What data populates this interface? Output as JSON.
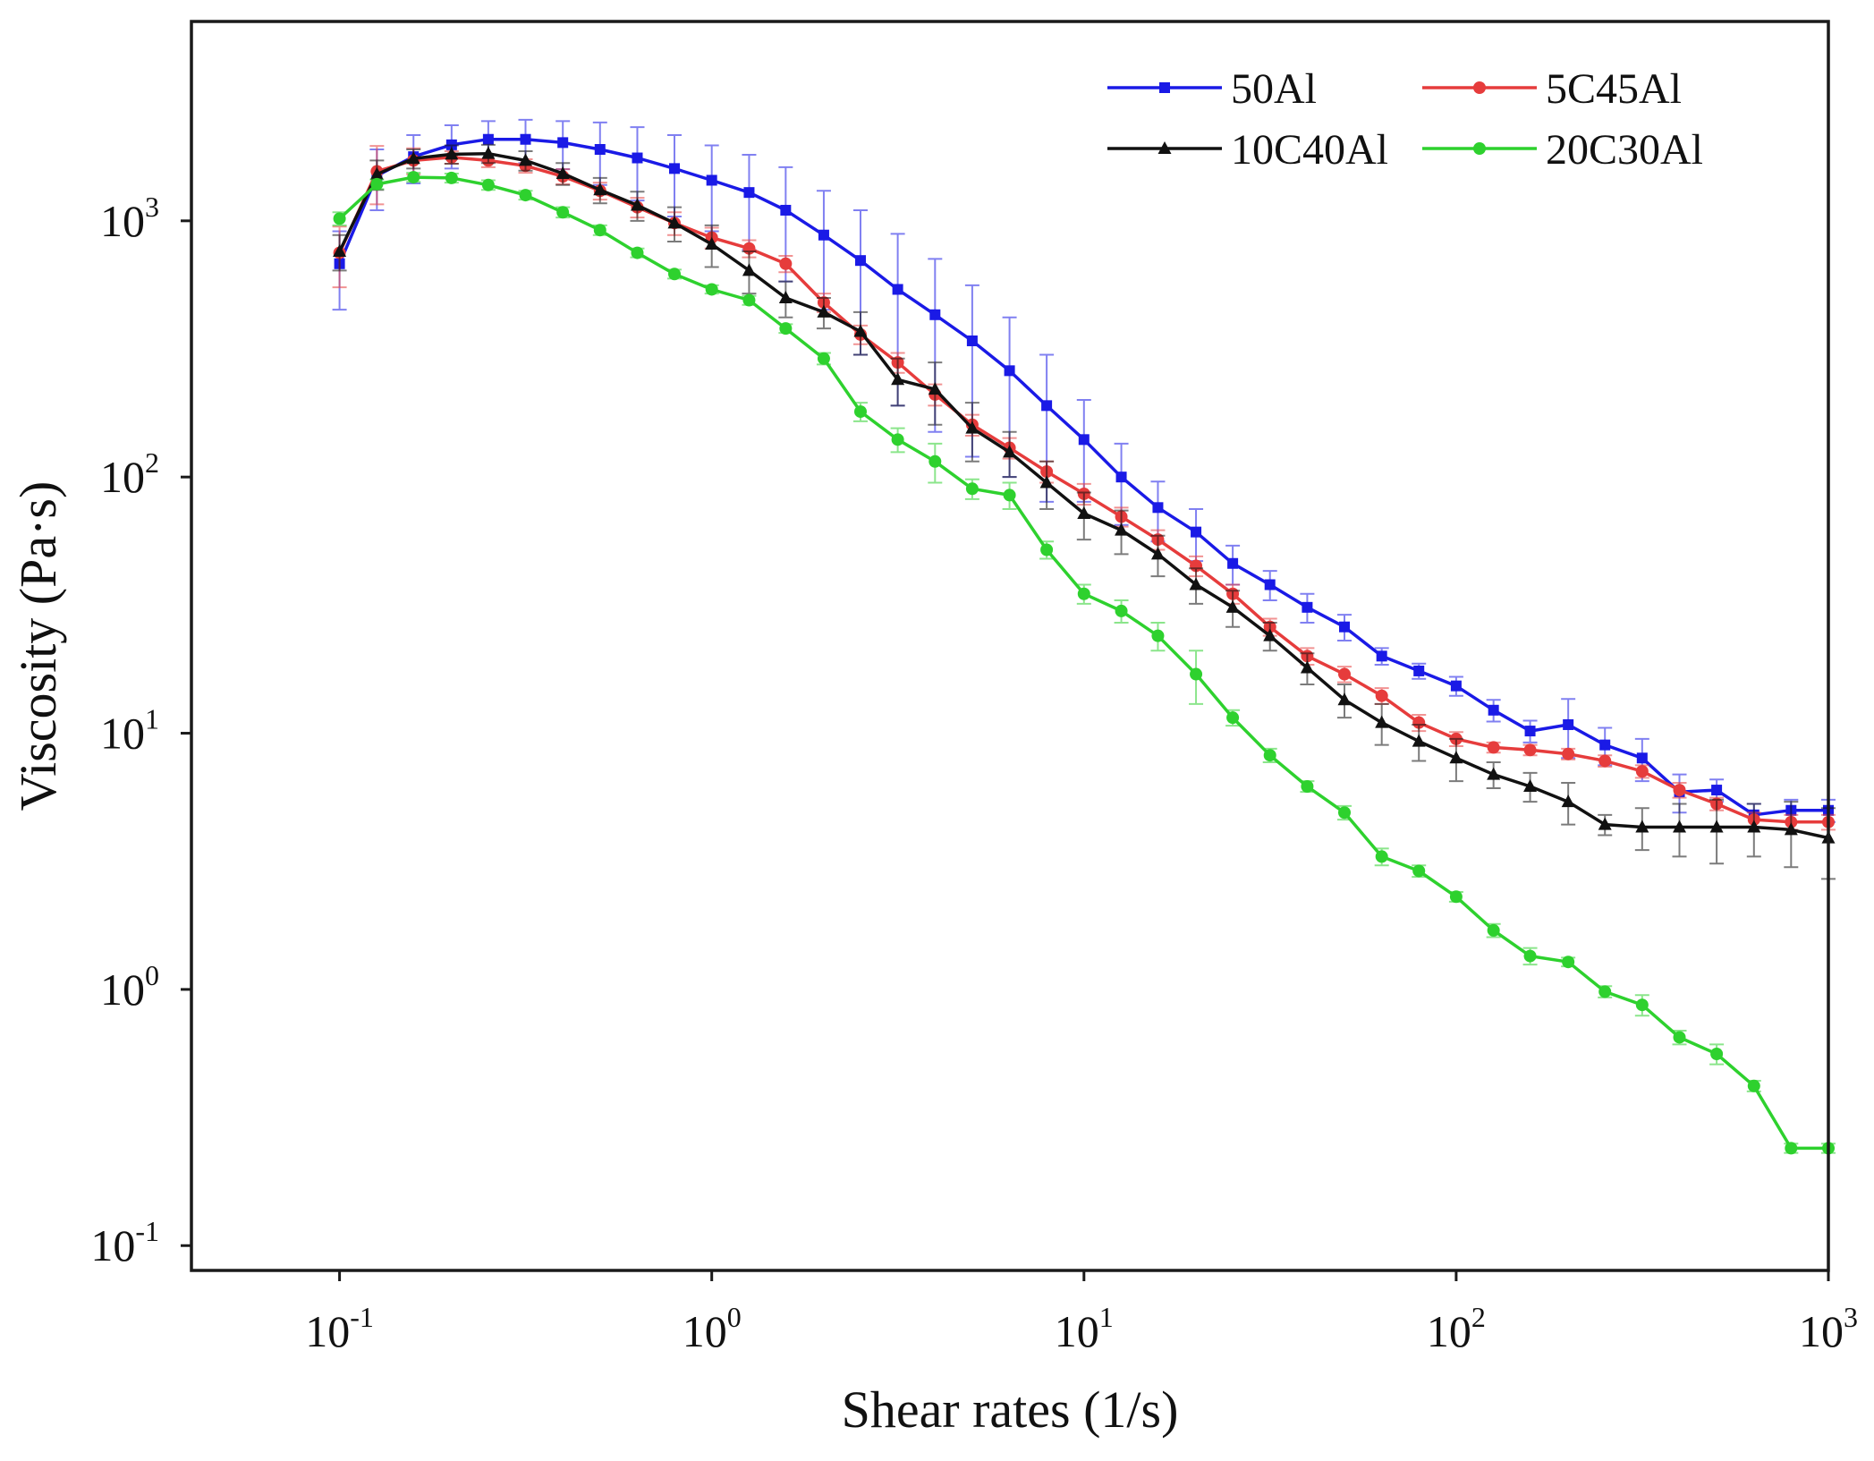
{
  "chart_data": {
    "type": "line",
    "xlabel": "Shear rates (1/s)",
    "ylabel": "Viscosity (Pa·s)",
    "x_scale": "log",
    "y_scale": "log",
    "xlim": [
      0.04,
      1000
    ],
    "ylim": [
      0.08,
      6000
    ],
    "grid": false,
    "legend_position": "top-right",
    "x_ticks": [
      {
        "base": "10",
        "exp": "-1",
        "value": 0.1
      },
      {
        "base": "10",
        "exp": "0",
        "value": 1
      },
      {
        "base": "10",
        "exp": "1",
        "value": 10
      },
      {
        "base": "10",
        "exp": "2",
        "value": 100
      },
      {
        "base": "10",
        "exp": "3",
        "value": 1000
      }
    ],
    "y_ticks": [
      {
        "base": "10",
        "exp": "-1",
        "value": 0.1
      },
      {
        "base": "10",
        "exp": "0",
        "value": 1
      },
      {
        "base": "10",
        "exp": "1",
        "value": 10
      },
      {
        "base": "10",
        "exp": "2",
        "value": 100
      },
      {
        "base": "10",
        "exp": "3",
        "value": 1000
      }
    ],
    "x": [
      0.1,
      0.126,
      0.158,
      0.2,
      0.251,
      0.316,
      0.398,
      0.501,
      0.631,
      0.794,
      1.0,
      1.26,
      1.58,
      2.0,
      2.51,
      3.16,
      3.98,
      5.01,
      6.31,
      7.94,
      10.0,
      12.6,
      15.8,
      20.0,
      25.1,
      31.6,
      39.8,
      50.1,
      63.1,
      79.4,
      100,
      126,
      158,
      200,
      251,
      316,
      398,
      501,
      631,
      794,
      1000
    ],
    "series": [
      {
        "name": "50Al",
        "color": "#1a1ae6",
        "marker": "square",
        "values": [
          680,
          1500,
          1780,
          1980,
          2080,
          2080,
          2020,
          1900,
          1760,
          1600,
          1440,
          1290,
          1100,
          880,
          700,
          540,
          430,
          340,
          260,
          190,
          140,
          100,
          76,
          61,
          46,
          38,
          31,
          26,
          20,
          17.5,
          15.3,
          12.3,
          10.2,
          10.8,
          9.0,
          8.0,
          5.9,
          6.0,
          4.8,
          5.0,
          5.0
        ],
        "errors": [
          230,
          400,
          380,
          380,
          370,
          400,
          430,
          520,
          560,
          560,
          530,
          520,
          520,
          430,
          400,
          350,
          280,
          220,
          160,
          110,
          60,
          35,
          20,
          14,
          8,
          5,
          4,
          3,
          1.5,
          1.2,
          1.3,
          1.2,
          1.0,
          2.8,
          1.5,
          1.5,
          1.0,
          0.6,
          0.5,
          0.5,
          0.5
        ]
      },
      {
        "name": "5C45Al",
        "color": "#e63c3c",
        "marker": "circle",
        "values": [
          750,
          1560,
          1720,
          1770,
          1720,
          1640,
          1490,
          1310,
          1130,
          980,
          860,
          780,
          680,
          480,
          360,
          280,
          210,
          160,
          130,
          105,
          86,
          70,
          57,
          45,
          35,
          26,
          20,
          17,
          14,
          11,
          9.5,
          8.8,
          8.6,
          8.3,
          7.8,
          7.1,
          6.0,
          5.3,
          4.6,
          4.5,
          4.5
        ],
        "errors": [
          200,
          400,
          200,
          100,
          100,
          100,
          100,
          100,
          100,
          100,
          80,
          60,
          50,
          40,
          30,
          25,
          20,
          15,
          12,
          10,
          8,
          6,
          5,
          4,
          3,
          2,
          1.5,
          1.2,
          1.0,
          0.8,
          0.6,
          0.4,
          0.4,
          0.4,
          0.4,
          0.4,
          0.4,
          0.3,
          0.3,
          0.3,
          0.3
        ]
      },
      {
        "name": "10C40Al",
        "color": "#111111",
        "marker": "triangle",
        "values": [
          760,
          1520,
          1750,
          1820,
          1830,
          1720,
          1530,
          1320,
          1150,
          980,
          810,
          640,
          500,
          440,
          370,
          240,
          220,
          155,
          125,
          95,
          72,
          62,
          50,
          38,
          31,
          24,
          18,
          13.5,
          11,
          9.3,
          8.0,
          6.9,
          6.2,
          5.4,
          4.4,
          4.3,
          4.3,
          4.3,
          4.3,
          4.2,
          3.9
        ],
        "errors": [
          120,
          200,
          150,
          150,
          150,
          150,
          150,
          150,
          150,
          150,
          150,
          120,
          80,
          60,
          70,
          50,
          60,
          40,
          25,
          20,
          15,
          12,
          9,
          6,
          5,
          3,
          2.5,
          2,
          2,
          1.5,
          1.5,
          0.8,
          0.8,
          1.0,
          0.4,
          0.8,
          1.0,
          1.2,
          1.0,
          1.2,
          1.2
        ]
      },
      {
        "name": "20C30Al",
        "color": "#2ed12e",
        "marker": "circle",
        "values": [
          1020,
          1390,
          1480,
          1470,
          1380,
          1260,
          1080,
          920,
          750,
          620,
          540,
          490,
          380,
          290,
          180,
          140,
          115,
          90,
          85,
          52,
          35,
          30,
          24,
          17,
          11.5,
          8.2,
          6.2,
          4.9,
          3.3,
          2.9,
          2.3,
          1.7,
          1.35,
          1.28,
          0.98,
          0.87,
          0.65,
          0.56,
          0.42,
          0.24,
          0.24
        ],
        "errors": [
          60,
          60,
          60,
          60,
          60,
          50,
          50,
          40,
          30,
          25,
          20,
          20,
          15,
          15,
          15,
          15,
          20,
          8,
          10,
          4,
          3,
          3,
          3,
          4,
          0.8,
          0.5,
          0.3,
          0.3,
          0.25,
          0.15,
          0.1,
          0.1,
          0.1,
          0.05,
          0.05,
          0.08,
          0.04,
          0.05,
          0.02,
          0.01,
          0.01
        ]
      }
    ]
  }
}
